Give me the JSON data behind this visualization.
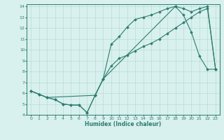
{
  "xlabel": "Humidex (Indice chaleur)",
  "ylabel": "",
  "xlim": [
    -0.5,
    23.5
  ],
  "ylim": [
    4,
    14.2
  ],
  "xticks": [
    0,
    1,
    2,
    3,
    4,
    5,
    6,
    7,
    8,
    9,
    10,
    11,
    12,
    13,
    14,
    15,
    16,
    17,
    18,
    19,
    20,
    21,
    22,
    23
  ],
  "yticks": [
    4,
    5,
    6,
    7,
    8,
    9,
    10,
    11,
    12,
    13,
    14
  ],
  "line_color": "#2d7d6e",
  "bg_color": "#d8f0ee",
  "grid_color": "#b8dcd8",
  "series1_x": [
    0,
    1,
    2,
    3,
    4,
    5,
    6,
    7,
    8,
    9,
    10,
    11,
    12,
    13,
    14,
    15,
    16,
    17,
    18,
    19,
    20,
    21,
    22,
    23
  ],
  "series1_y": [
    6.2,
    5.9,
    5.6,
    5.4,
    5.0,
    4.9,
    4.9,
    4.2,
    5.8,
    7.3,
    8.5,
    9.2,
    9.5,
    9.9,
    10.3,
    10.6,
    11.0,
    11.5,
    12.0,
    12.5,
    13.0,
    13.5,
    13.8,
    8.2
  ],
  "series2_x": [
    0,
    1,
    2,
    3,
    4,
    5,
    6,
    7,
    8,
    9,
    10,
    11,
    12,
    13,
    14,
    15,
    16,
    17,
    18,
    19,
    20,
    21,
    22,
    23
  ],
  "series2_y": [
    6.2,
    5.9,
    5.6,
    5.4,
    5.0,
    4.9,
    4.9,
    4.2,
    5.8,
    7.3,
    10.5,
    11.2,
    12.1,
    12.8,
    13.0,
    13.2,
    13.5,
    13.8,
    14.0,
    13.2,
    11.6,
    9.4,
    8.2,
    8.2
  ],
  "series3_x": [
    0,
    1,
    2,
    8,
    9,
    18,
    19,
    20,
    21,
    22,
    23
  ],
  "series3_y": [
    6.2,
    5.9,
    5.6,
    5.8,
    7.3,
    14.0,
    13.8,
    13.5,
    13.8,
    14.0,
    8.2
  ]
}
